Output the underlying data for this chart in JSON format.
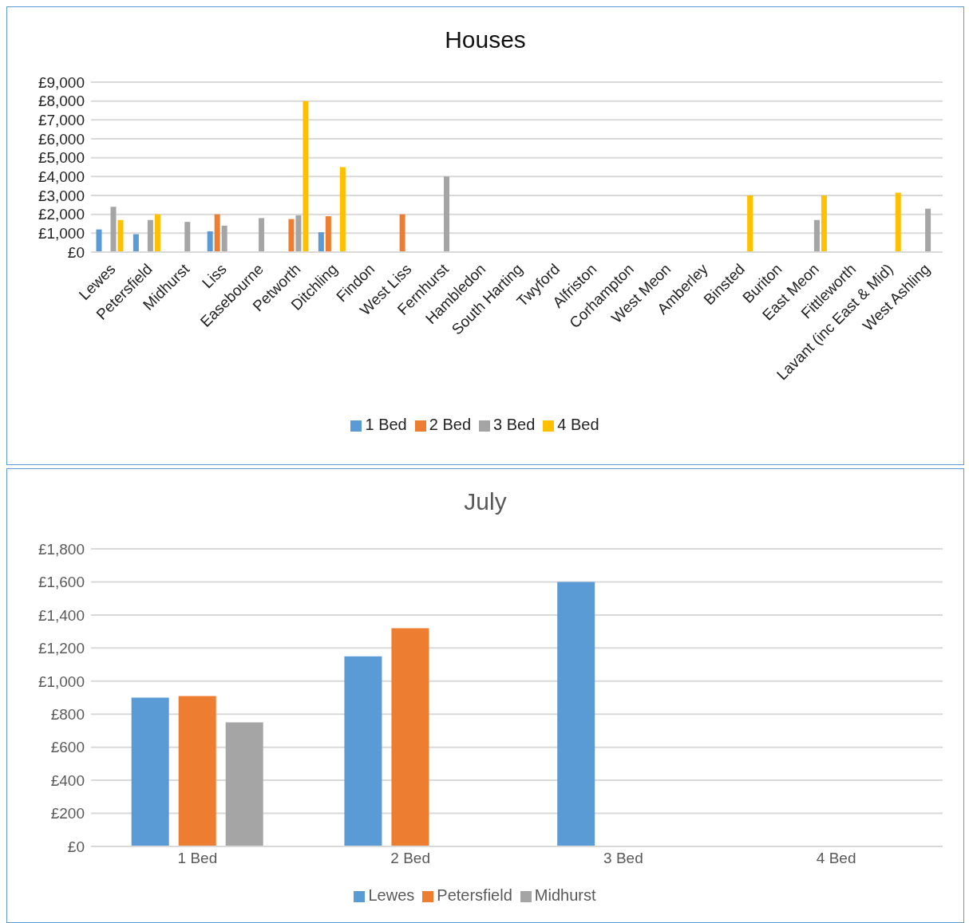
{
  "chart_data": [
    {
      "type": "bar",
      "title": "Houses",
      "categories": [
        "Lewes",
        "Petersfield",
        "Midhurst",
        "Liss",
        "Easebourne",
        "Petworth",
        "Ditchling",
        "Findon",
        "West Liss",
        "Fernhurst",
        "Hambledon",
        "South Harting",
        "Twyford",
        "Alfriston",
        "Corhampton",
        "West Meon",
        "Amberley",
        "Binsted",
        "Buriton",
        "East Meon",
        "Fittleworth",
        "Lavant (inc East & Mid)",
        "West Ashling"
      ],
      "series": [
        {
          "name": "1 Bed",
          "color": "#5b9bd5",
          "values": [
            1200,
            950,
            null,
            1100,
            null,
            null,
            1050,
            null,
            null,
            null,
            null,
            null,
            null,
            null,
            null,
            null,
            null,
            null,
            null,
            null,
            null,
            null,
            null
          ]
        },
        {
          "name": "2 Bed",
          "color": "#ed7d31",
          "values": [
            null,
            null,
            null,
            2000,
            null,
            1750,
            1900,
            null,
            2000,
            null,
            null,
            null,
            null,
            null,
            null,
            null,
            null,
            null,
            null,
            null,
            null,
            null,
            null
          ]
        },
        {
          "name": "3 Bed",
          "color": "#a5a5a5",
          "values": [
            2400,
            1700,
            1600,
            1400,
            1800,
            1950,
            null,
            null,
            null,
            4000,
            null,
            null,
            null,
            null,
            null,
            null,
            null,
            null,
            null,
            1700,
            null,
            null,
            2300
          ]
        },
        {
          "name": "4 Bed",
          "color": "#ffc000",
          "values": [
            1700,
            2000,
            null,
            null,
            null,
            8000,
            4500,
            null,
            null,
            null,
            null,
            null,
            null,
            null,
            null,
            null,
            null,
            3000,
            null,
            3000,
            null,
            3150,
            null
          ]
        }
      ],
      "ylim": [
        0,
        9000
      ],
      "yticks": [
        {
          "value": 0,
          "label": "£0"
        },
        {
          "value": 1000,
          "label": "£1,000"
        },
        {
          "value": 2000,
          "label": "£2,000"
        },
        {
          "value": 3000,
          "label": "£3,000"
        },
        {
          "value": 4000,
          "label": "£4,000"
        },
        {
          "value": 5000,
          "label": "£5,000"
        },
        {
          "value": 6000,
          "label": "£6,000"
        },
        {
          "value": 7000,
          "label": "£7,000"
        },
        {
          "value": 8000,
          "label": "£8,000"
        },
        {
          "value": 9000,
          "label": "£9,000"
        }
      ],
      "grid": "y",
      "legend": "bottom"
    },
    {
      "type": "bar",
      "title": "July",
      "categories": [
        "1 Bed",
        "2 Bed",
        "3 Bed",
        "4 Bed"
      ],
      "series": [
        {
          "name": "Lewes",
          "color": "#5b9bd5",
          "values": [
            900,
            1150,
            1600,
            null
          ]
        },
        {
          "name": "Petersfield",
          "color": "#ed7d31",
          "values": [
            910,
            1320,
            null,
            null
          ]
        },
        {
          "name": "Midhurst",
          "color": "#a5a5a5",
          "values": [
            750,
            null,
            null,
            null
          ]
        }
      ],
      "ylim": [
        0,
        1800
      ],
      "yticks": [
        {
          "value": 0,
          "label": "£0"
        },
        {
          "value": 200,
          "label": "£200"
        },
        {
          "value": 400,
          "label": "£400"
        },
        {
          "value": 600,
          "label": "£600"
        },
        {
          "value": 800,
          "label": "£800"
        },
        {
          "value": 1000,
          "label": "£1,000"
        },
        {
          "value": 1200,
          "label": "£1,200"
        },
        {
          "value": 1400,
          "label": "£1,400"
        },
        {
          "value": 1600,
          "label": "£1,600"
        },
        {
          "value": 1800,
          "label": "£1,800"
        }
      ],
      "grid": "y",
      "legend": "bottom"
    }
  ]
}
